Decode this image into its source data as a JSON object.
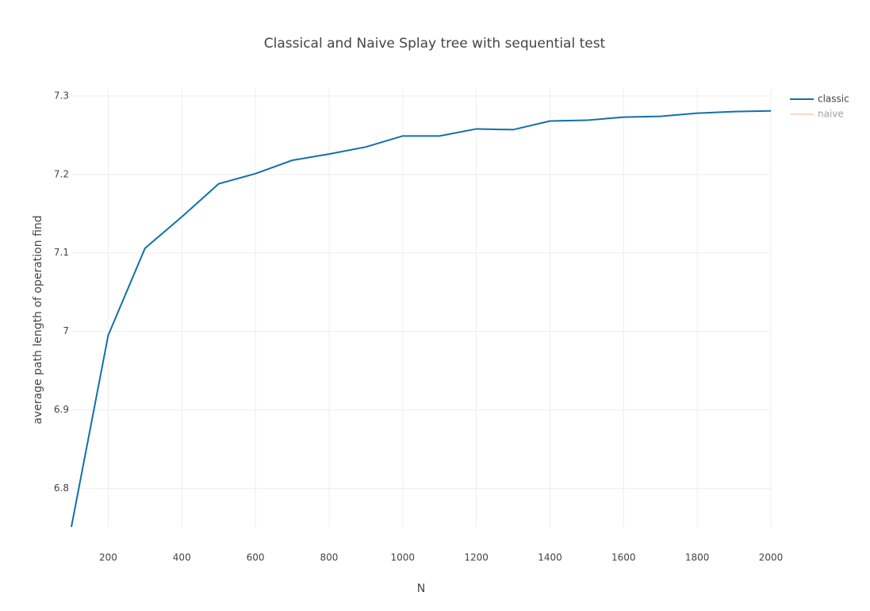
{
  "chart_data": {
    "type": "line",
    "title": "Classical and Naive Splay tree with sequential test",
    "x_label": "N",
    "y_label": "average path length of operation find",
    "x": [
      100,
      200,
      300,
      400,
      500,
      600,
      700,
      800,
      900,
      1000,
      1100,
      1200,
      1300,
      1400,
      1500,
      1600,
      1700,
      1800,
      1900,
      2000
    ],
    "series": [
      {
        "name": "classic",
        "color": "#1170aa",
        "values": [
          6.751,
          6.995,
          7.106,
          7.146,
          7.188,
          7.201,
          7.218,
          7.226,
          7.235,
          7.249,
          7.249,
          7.258,
          7.257,
          7.268,
          7.269,
          7.273,
          7.274,
          7.278,
          7.28,
          7.281
        ]
      },
      {
        "name": "naive",
        "color": "#f5b88a",
        "visible": "legendonly"
      }
    ],
    "xlim": [
      100,
      2000
    ],
    "xticks": [
      200,
      400,
      600,
      800,
      1000,
      1200,
      1400,
      1600,
      1800,
      2000
    ],
    "ylim": [
      6.751,
      7.31
    ],
    "yticks": [
      6.8,
      6.9,
      7,
      7.1,
      7.2,
      7.3
    ],
    "grid": true,
    "legend": "top-right"
  }
}
